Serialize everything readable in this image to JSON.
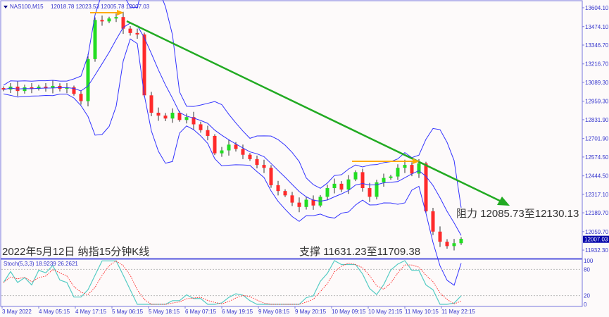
{
  "header": {
    "symbol": "NAS100,M15",
    "ohlc": "12018.78 12023.53 12005.78 12007.03"
  },
  "annotations": {
    "title": "2022年5月12日 纳指15分钟K线",
    "resistance": "阻力 12085.73至12130.13",
    "support": "支撑 11631.23至11709.38"
  },
  "colors": {
    "up": "#22dd22",
    "down": "#ff2a2a",
    "bands": "#3333ff",
    "trend": "#22aa22",
    "arrow": "#ffaa00",
    "stoch_k": "#55ccc4",
    "stoch_d": "#ff3333",
    "price_tag": "#0000aa"
  },
  "chart_data": {
    "type": "candlestick",
    "price_axis_ticks": [
      "13604.10",
      "13474.10",
      "13346.70",
      "13216.70",
      "13089.30",
      "12959.30",
      "12831.90",
      "12701.90",
      "12574.50",
      "12444.50",
      "12317.10",
      "12189.70",
      "12059.70",
      "11932.30"
    ],
    "current_price": "12007.03",
    "closes": [
      13040,
      13060,
      13030,
      13055,
      13045,
      13060,
      13050,
      13065,
      13045,
      13055,
      13010,
      12960,
      13250,
      13520,
      13510,
      13530,
      13540,
      13460,
      13430,
      13420,
      13000,
      12880,
      12860,
      12840,
      12880,
      12830,
      12850,
      12800,
      12760,
      12720,
      12600,
      12620,
      12660,
      12630,
      12590,
      12560,
      12520,
      12500,
      12380,
      12340,
      12310,
      12260,
      12230,
      12280,
      12240,
      12300,
      12360,
      12390,
      12350,
      12420,
      12470,
      12360,
      12300,
      12400,
      12430,
      12440,
      12500,
      12520,
      12460,
      12530,
      12200,
      12060,
      11990,
      11960,
      11980,
      12010
    ],
    "indicator": {
      "label": "Stoch(5,3,3) 18.9239 26.2621",
      "ticks": [
        "100",
        "80",
        "20",
        "0"
      ]
    },
    "time_labels": [
      "3 May 2022",
      "4 May 05:15",
      "4 May 17:15",
      "5 May 06:15",
      "5 May 18:15",
      "6 May 07:15",
      "6 May 19:15",
      "9 May 08:15",
      "9 May 20:15",
      "10 May 09:15",
      "10 May 21:15",
      "11 May 10:15",
      "11 May 22:15"
    ]
  }
}
